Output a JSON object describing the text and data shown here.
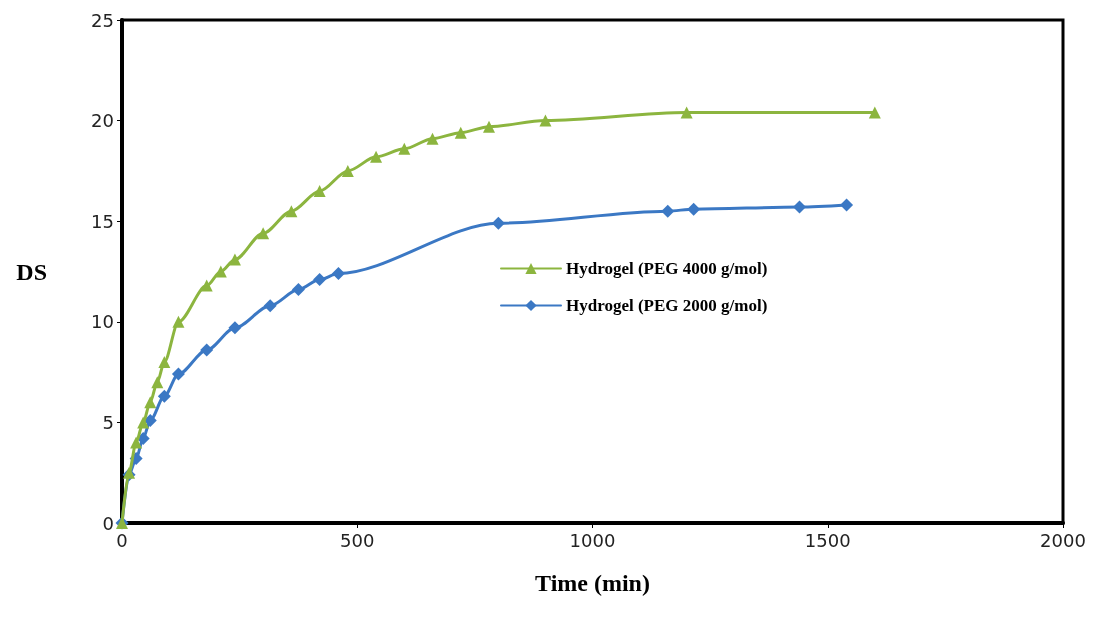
{
  "chart_data": {
    "type": "line",
    "xlabel": "Time (min)",
    "ylabel": "DS",
    "xlim": [
      0,
      2000
    ],
    "xticks": [
      0,
      500,
      1000,
      1500,
      2000
    ],
    "ylim": [
      0,
      25
    ],
    "yticks": [
      0,
      5,
      10,
      15,
      20,
      25
    ],
    "grid": false,
    "legend": "right",
    "line_style": "solid",
    "series": [
      {
        "name": "Hydrogel (PEG 4000 g/mol)",
        "color": "#8cb53f",
        "marker": "triangle",
        "x": [
          0,
          15,
          30,
          45,
          60,
          75,
          90,
          120,
          180,
          210,
          240,
          300,
          360,
          420,
          480,
          540,
          600,
          660,
          720,
          780,
          900,
          1200,
          1600
        ],
        "values": [
          0,
          2.5,
          4,
          5,
          6,
          7,
          8,
          10,
          11.8,
          12.5,
          13.1,
          14.4,
          15.5,
          16.5,
          17.5,
          18.2,
          18.6,
          19.1,
          19.4,
          19.7,
          20,
          20.4,
          20.4
        ]
      },
      {
        "name": "Hydrogel (PEG 2000 g/mol)",
        "color": "#3b78c4",
        "marker": "diamond",
        "x": [
          0,
          15,
          30,
          45,
          60,
          90,
          120,
          180,
          240,
          315,
          375,
          420,
          460,
          800,
          1160,
          1215,
          1440,
          1540
        ],
        "values": [
          0,
          2.4,
          3.2,
          4.2,
          5.1,
          6.3,
          7.4,
          8.6,
          9.7,
          10.8,
          11.6,
          12.1,
          12.4,
          14.9,
          15.5,
          15.6,
          15.7,
          15.8
        ]
      }
    ]
  }
}
